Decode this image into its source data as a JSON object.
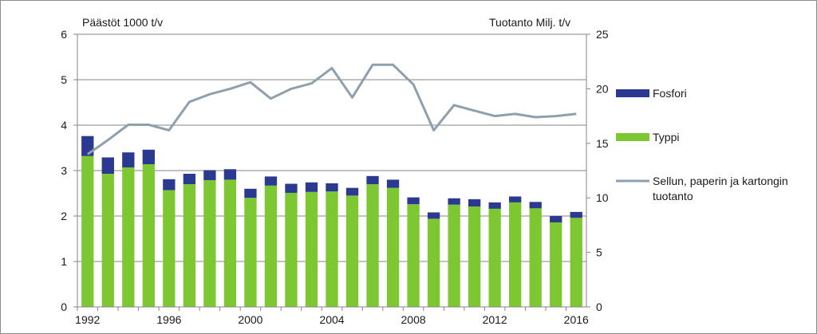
{
  "chart_data": {
    "type": "bar",
    "stacked": true,
    "secondary_axis": true,
    "x": [
      1992,
      1993,
      1994,
      1995,
      1996,
      1997,
      1998,
      1999,
      2000,
      2001,
      2002,
      2003,
      2004,
      2005,
      2006,
      2007,
      2008,
      2009,
      2010,
      2011,
      2012,
      2013,
      2014,
      2015,
      2016
    ],
    "x_tick_labels": [
      "1992",
      "1996",
      "2000",
      "2004",
      "2008",
      "2012",
      "2016"
    ],
    "x_tick_values": [
      1992,
      1996,
      2000,
      2004,
      2008,
      2012,
      2016
    ],
    "ylabel_left": "Päästöt 1000 t/v",
    "ylabel_right": "Tuotanto Milj. t/v",
    "ylim_left": [
      0,
      6
    ],
    "ylim_right": [
      0,
      25
    ],
    "yticks_left": [
      "0",
      "1",
      "2",
      "3",
      "4",
      "5",
      "6"
    ],
    "yticks_right": [
      "0",
      "5",
      "10",
      "15",
      "20",
      "25"
    ],
    "grid": true,
    "legend_position": "right",
    "colors": {
      "typpi": "#7dc832",
      "fosfori": "#2b3990",
      "line": "#8fa0ad",
      "grid": "#868686"
    },
    "series": [
      {
        "name": "Fosfori",
        "kind": "bar",
        "axis": "left",
        "values": [
          0.44,
          0.36,
          0.33,
          0.32,
          0.24,
          0.23,
          0.22,
          0.23,
          0.2,
          0.2,
          0.2,
          0.21,
          0.18,
          0.17,
          0.18,
          0.18,
          0.15,
          0.14,
          0.14,
          0.16,
          0.14,
          0.13,
          0.14,
          0.14,
          0.13
        ]
      },
      {
        "name": "Typpi",
        "kind": "bar",
        "axis": "left",
        "values": [
          3.32,
          2.93,
          3.07,
          3.14,
          2.57,
          2.7,
          2.79,
          2.8,
          2.4,
          2.67,
          2.51,
          2.53,
          2.54,
          2.45,
          2.7,
          2.62,
          2.26,
          1.94,
          2.25,
          2.21,
          2.16,
          2.3,
          2.17,
          1.86,
          1.96
        ]
      },
      {
        "name": "Sellun, paperin ja kartongin tuotanto",
        "kind": "line",
        "axis": "right",
        "values": [
          14.0,
          15.3,
          16.7,
          16.7,
          16.2,
          18.8,
          19.5,
          20.0,
          20.6,
          19.1,
          20.0,
          20.5,
          21.9,
          19.2,
          22.2,
          22.2,
          20.4,
          16.2,
          18.5,
          18.0,
          17.5,
          17.7,
          17.4,
          17.5,
          17.7
        ]
      }
    ],
    "legend": [
      "Fosfori",
      "Typpi",
      "Sellun, paperin ja kartongin tuotanto"
    ]
  }
}
